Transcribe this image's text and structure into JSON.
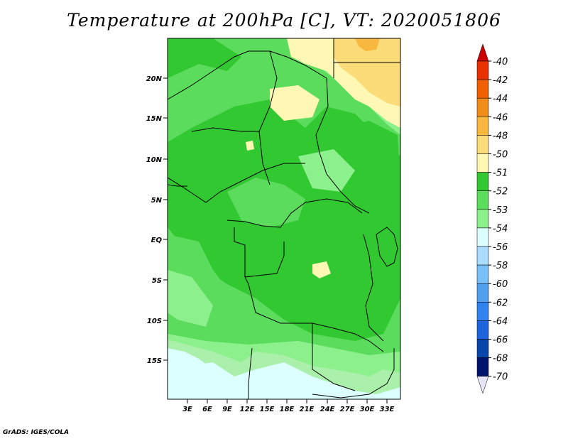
{
  "title": "Temperature at 200hPa [C], VT: 2020051806",
  "credit": "GrADS: IGES/COLA",
  "map": {
    "lat_labels": [
      "20N",
      "15N",
      "10N",
      "5N",
      "EQ",
      "5S",
      "10S",
      "15S"
    ],
    "lon_labels": [
      "3E",
      "6E",
      "9E",
      "12E",
      "15E",
      "18E",
      "21E",
      "24E",
      "27E",
      "30E",
      "33E"
    ]
  },
  "colorbar": {
    "labels": [
      "-40",
      "-42",
      "-44",
      "-46",
      "-48",
      "-50",
      "-51",
      "-52",
      "-53",
      "-54",
      "-56",
      "-58",
      "-60",
      "-62",
      "-64",
      "-66",
      "-68",
      "-70"
    ],
    "colors": [
      "#cc0000",
      "#e83000",
      "#f06000",
      "#f08c18",
      "#f8b840",
      "#fcdc78",
      "#fff8b4",
      "#32c832",
      "#5cdc5c",
      "#8cf08c",
      "#dcffff",
      "#aadcff",
      "#78c0f8",
      "#50a0f0",
      "#3282f0",
      "#1e64dc",
      "#0a46aa",
      "#00146e",
      "#e8e4f8"
    ]
  },
  "colors": {
    "c51": "#32c832",
    "c52": "#5cdc5c",
    "c53": "#8cf08c",
    "c54": "#dcffff",
    "c50": "#fff8b4",
    "c48": "#fcdc78",
    "c46": "#f8b840"
  }
}
